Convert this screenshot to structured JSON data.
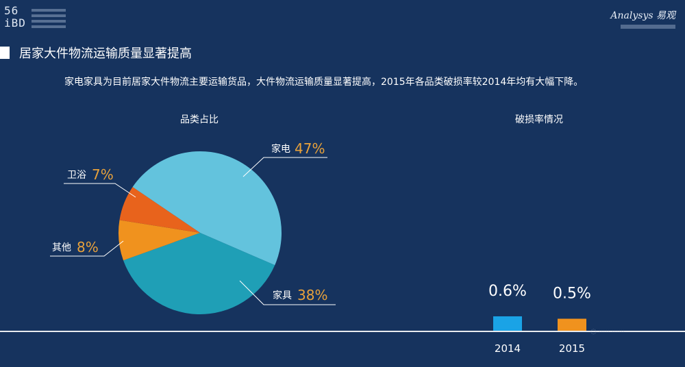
{
  "header": {
    "logo_left_top": "56",
    "logo_left_bottom": "iBD",
    "brand": "Analysys 易观"
  },
  "slide": {
    "title": "居家大件物流运输质量显著提高",
    "description": "家电家具为目前居家大件物流主要运输货品，大件物流运输质量显著提高，2015年各品类破损率较2014年均有大幅下降。",
    "subtitle_left": "品类占比",
    "subtitle_right": "破损率情况"
  },
  "colors": {
    "background": "#16335e",
    "appliance": "#63c3dd",
    "furniture": "#1f9fb6",
    "bathroom": "#e8631c",
    "other": "#f0921e",
    "bar_2014": "#1aa3e6",
    "bar_2015": "#f0921e",
    "pct_text": "#e9a23b"
  },
  "chart_data": [
    {
      "type": "pie",
      "title": "品类占比",
      "slices": [
        {
          "name": "家电",
          "value": 47,
          "label": "47%"
        },
        {
          "name": "家具",
          "value": 38,
          "label": "38%"
        },
        {
          "name": "其他",
          "value": 8,
          "label": "8%"
        },
        {
          "name": "卫浴",
          "value": 7,
          "label": "7%"
        }
      ]
    },
    {
      "type": "bar",
      "title": "破损率情况",
      "categories": [
        "2014",
        "2015"
      ],
      "values": [
        0.6,
        0.5
      ],
      "value_labels": [
        "0.6%",
        "0.5%"
      ]
    }
  ]
}
